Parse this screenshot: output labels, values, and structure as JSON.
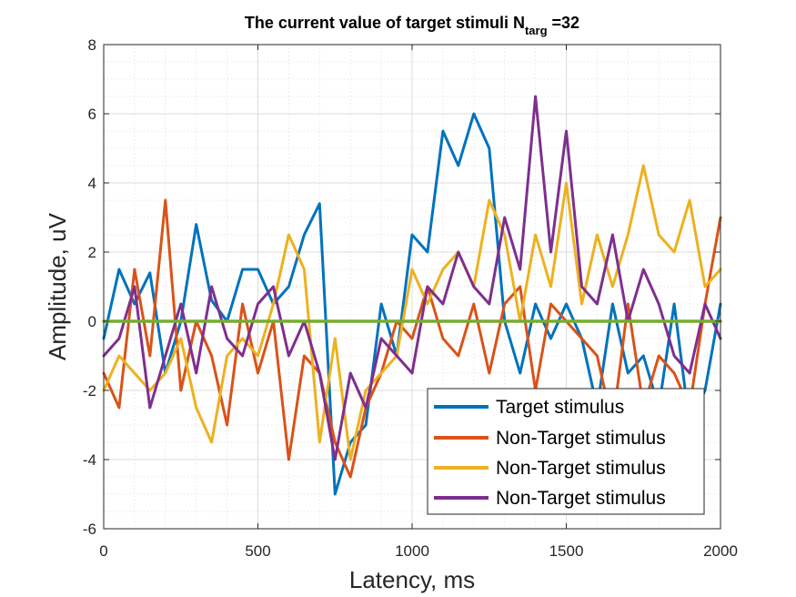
{
  "chart_data": {
    "type": "line",
    "title": {
      "main": "The current value of target stimuli N",
      "sub": "targ",
      "suffix": " =32"
    },
    "xlabel": "Latency, ms",
    "ylabel": "Amplitude, uV",
    "xlim": [
      0,
      2000
    ],
    "ylim": [
      -6,
      8
    ],
    "xticks": [
      0,
      500,
      1000,
      1500,
      2000
    ],
    "yticks": [
      -6,
      -4,
      -2,
      0,
      2,
      4,
      6,
      8
    ],
    "grid": true,
    "minor_grid": true,
    "legend_position": "bottom-right",
    "x": [
      0,
      50,
      100,
      150,
      200,
      250,
      300,
      350,
      400,
      450,
      500,
      550,
      600,
      650,
      700,
      750,
      800,
      850,
      900,
      950,
      1000,
      1050,
      1100,
      1150,
      1200,
      1250,
      1300,
      1350,
      1400,
      1450,
      1500,
      1550,
      1600,
      1650,
      1700,
      1750,
      1800,
      1850,
      1900,
      1950,
      2000
    ],
    "series": [
      {
        "name": "Target stimulus",
        "color": "#0072BD",
        "values": [
          -0.5,
          1.5,
          0.5,
          1.4,
          -1.5,
          0.0,
          2.8,
          0.6,
          0.0,
          1.5,
          1.5,
          0.5,
          1.0,
          2.5,
          3.4,
          -5.0,
          -3.5,
          -3.0,
          0.5,
          -1.0,
          2.5,
          2.0,
          5.5,
          4.5,
          6.0,
          5.0,
          0.0,
          -1.5,
          0.5,
          -0.5,
          0.5,
          -0.5,
          -2.5,
          0.5,
          -1.5,
          -1.0,
          -2.5,
          0.5,
          -3.0,
          -2.0,
          0.5
        ]
      },
      {
        "name": "Non-Target stimulus",
        "color": "#D95319",
        "values": [
          -1.5,
          -2.5,
          1.5,
          -1.0,
          3.5,
          -2.0,
          0.0,
          -1.0,
          -3.0,
          0.5,
          -1.5,
          0.0,
          -4.0,
          -1.0,
          -1.5,
          -3.5,
          -4.5,
          -2.5,
          -1.5,
          0.0,
          -0.5,
          1.0,
          -0.5,
          -1.0,
          0.5,
          -1.5,
          0.5,
          1.0,
          -2.0,
          0.5,
          0.0,
          -0.5,
          -1.0,
          -3.0,
          0.5,
          -2.5,
          -1.0,
          -1.5,
          -2.5,
          0.5,
          3.0
        ]
      },
      {
        "name": "Non-Target stimulus",
        "color": "#EDB120",
        "values": [
          -2.0,
          -1.0,
          -1.5,
          -2.0,
          -1.5,
          -0.5,
          -2.5,
          -3.5,
          -1.0,
          -0.5,
          -1.0,
          0.5,
          2.5,
          1.5,
          -3.5,
          -0.5,
          -4.0,
          -2.0,
          -1.5,
          -1.0,
          1.5,
          0.5,
          1.5,
          2.0,
          1.0,
          3.5,
          2.5,
          0.0,
          2.5,
          1.0,
          4.0,
          0.5,
          2.5,
          1.0,
          2.5,
          4.5,
          2.5,
          2.0,
          3.5,
          1.0,
          1.5
        ]
      },
      {
        "name": "Non-Target stimulus",
        "color": "#7E2F8E",
        "values": [
          -1.0,
          -0.5,
          1.0,
          -2.5,
          -1.0,
          0.5,
          -1.5,
          1.0,
          -0.5,
          -1.0,
          0.5,
          1.0,
          -1.0,
          0.0,
          -1.5,
          -4.0,
          -1.5,
          -2.5,
          -0.5,
          -1.0,
          -1.5,
          1.0,
          0.5,
          2.0,
          1.0,
          0.5,
          3.0,
          1.5,
          6.5,
          2.0,
          5.5,
          1.0,
          0.5,
          2.5,
          0.0,
          1.5,
          0.5,
          -1.0,
          -1.5,
          0.5,
          -0.5
        ]
      },
      {
        "name": "",
        "color": "#77AC30",
        "values": [
          0,
          0,
          0,
          0,
          0,
          0,
          0,
          0,
          0,
          0,
          0,
          0,
          0,
          0,
          0,
          0,
          0,
          0,
          0,
          0,
          0,
          0,
          0,
          0,
          0,
          0,
          0,
          0,
          0,
          0,
          0,
          0,
          0,
          0,
          0,
          0,
          0,
          0,
          0,
          0,
          0
        ]
      }
    ],
    "legend": [
      "Target stimulus",
      "Non-Target stimulus",
      "Non-Target stimulus",
      "Non-Target stimulus"
    ]
  }
}
